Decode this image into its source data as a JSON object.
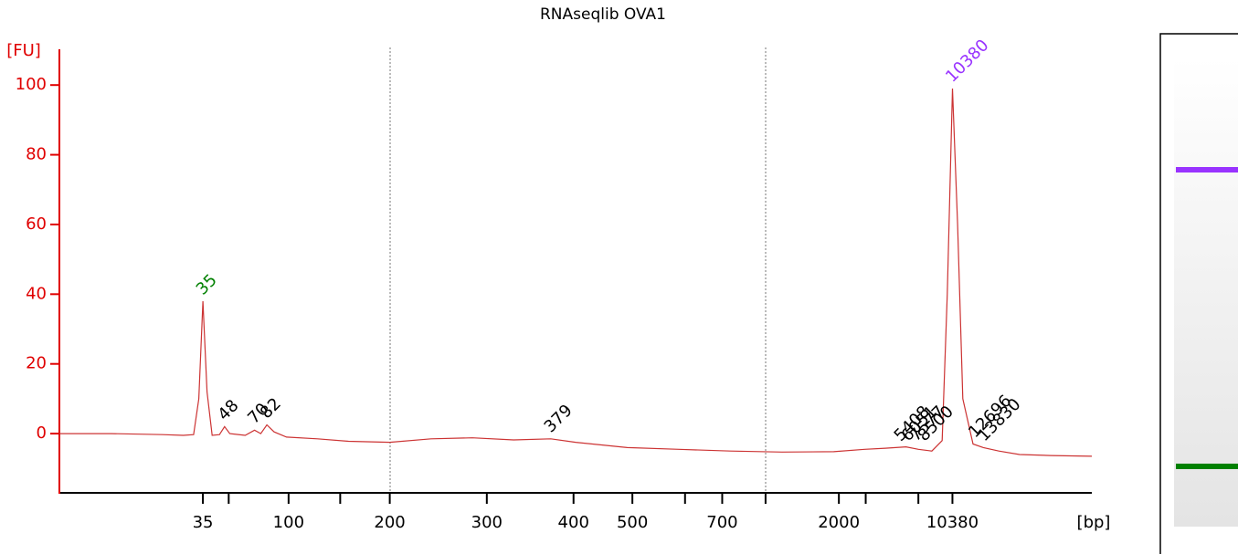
{
  "chart_data": {
    "type": "line",
    "title": "RNAseqlib OVA1",
    "y_label": "[FU]",
    "x_label": "[bp]",
    "xlim": [
      0,
      100
    ],
    "ylim": [
      -17,
      110
    ],
    "yticks": [
      0,
      20,
      40,
      60,
      80,
      100
    ],
    "xticks": [
      {
        "value": 13.9,
        "label": "35"
      },
      {
        "value": 22.2,
        "label": "100"
      },
      {
        "value": 32.0,
        "label": "200"
      },
      {
        "value": 41.4,
        "label": "300"
      },
      {
        "value": 49.8,
        "label": "400"
      },
      {
        "value": 55.5,
        "label": "500"
      },
      {
        "value": 64.2,
        "label": "700"
      },
      {
        "value": 75.5,
        "label": "2000"
      },
      {
        "value": 86.5,
        "label": "10380"
      }
    ],
    "xminorticks": [
      16.4,
      27.2,
      60.6,
      68.4,
      78.1,
      83.2
    ],
    "series": [
      {
        "color": "#cc3333",
        "x": [
          0,
          5,
          10,
          12,
          13,
          13.5,
          13.9,
          14.3,
          14.8,
          15.5,
          16.0,
          16.5,
          18,
          18.9,
          19.5,
          20.1,
          20.8,
          22,
          25,
          28,
          32,
          36,
          40,
          44,
          47.6,
          50,
          55,
          60,
          65,
          70,
          75,
          78,
          80,
          82,
          83.2,
          84.5,
          85.5,
          86,
          86.5,
          87,
          87.5,
          88.5,
          89.5,
          91,
          93,
          96,
          100
        ],
        "values": [
          0,
          0,
          -0.3,
          -0.5,
          -0.3,
          10,
          38,
          12,
          -0.5,
          -0.3,
          2,
          0,
          -0.5,
          1,
          0,
          2.5,
          0.5,
          -1,
          -1.5,
          -2.2,
          -2.5,
          -1.5,
          -1.2,
          -1.8,
          -1.5,
          -2.5,
          -4,
          -4.5,
          -5,
          -5.3,
          -5.2,
          -4.5,
          -4.2,
          -3.8,
          -4.5,
          -5,
          -2,
          40,
          99,
          60,
          10,
          -3,
          -4,
          -5,
          -6,
          -6.3,
          -6.5
        ]
      }
    ],
    "peaks": [
      {
        "label": "35",
        "x": 13.9,
        "y": 38,
        "color": "#008000"
      },
      {
        "label": "48",
        "x": 16.0,
        "y": 2,
        "color": "#000000"
      },
      {
        "label": "70",
        "x": 18.9,
        "y": 1,
        "color": "#000000"
      },
      {
        "label": "82",
        "x": 20.1,
        "y": 2.5,
        "color": "#000000"
      },
      {
        "label": "379",
        "x": 47.6,
        "y": -1.5,
        "color": "#000000"
      },
      {
        "label": "5408",
        "x": 81.5,
        "y": -4,
        "color": "#000000"
      },
      {
        "label": "6051",
        "x": 82.2,
        "y": -4,
        "color": "#000000"
      },
      {
        "label": "7577",
        "x": 83.0,
        "y": -4,
        "color": "#000000"
      },
      {
        "label": "8500",
        "x": 83.8,
        "y": -4,
        "color": "#000000"
      },
      {
        "label": "10380",
        "x": 86.5,
        "y": 99,
        "color": "#9933ff"
      },
      {
        "label": "12696",
        "x": 88.7,
        "y": -3,
        "color": "#000000"
      },
      {
        "label": "13830",
        "x": 89.6,
        "y": -4,
        "color": "#000000"
      }
    ]
  }
}
